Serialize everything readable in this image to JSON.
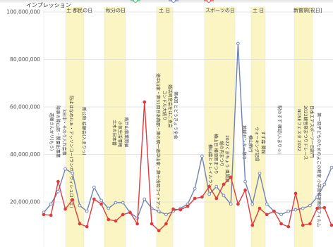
{
  "chart_data": {
    "type": "line",
    "ylabel": "インプレッション",
    "ylim": [
      0,
      100000000
    ],
    "y_ticks": [
      {
        "value": 100000000,
        "label": "100,000,000"
      },
      {
        "value": 80000000,
        "label": "80,000,000"
      },
      {
        "value": 60000000,
        "label": "60,000,000"
      },
      {
        "value": 40000000,
        "label": "40,000,000"
      },
      {
        "value": 20000000,
        "label": "20,000,000"
      }
    ],
    "grid": true,
    "series": [
      {
        "color": "#6f82b6",
        "values": [
          15600000,
          19100000,
          24400000,
          33900000,
          32100000,
          18500000,
          16100000,
          26200000,
          20600000,
          17300000,
          19700000,
          19700000,
          15600000,
          13200000,
          21200000,
          17300000,
          16100000,
          14700000,
          16100000,
          17300000,
          19100000,
          25600000,
          39300000,
          23300000,
          26500000,
          22700000,
          19100000,
          86700000,
          28600000,
          19100000,
          32100000,
          19100000,
          16100000,
          14700000,
          16100000,
          16700000,
          17300000,
          18500000,
          22100000,
          27400000,
          34500000
        ]
      },
      {
        "color": "#e23b3b",
        "values": [
          14700000,
          14400000,
          28600000,
          17000000,
          20900000,
          10800000,
          9600000,
          21200000,
          19100000,
          12600000,
          12000000,
          14700000,
          15600000,
          10800000,
          62100000,
          10800000,
          7900000,
          10800000,
          17000000,
          16700000,
          18200000,
          21500000,
          22100000,
          26500000,
          21500000,
          27400000,
          30400000,
          19100000,
          25000000,
          10200000,
          17300000,
          14700000,
          16100000,
          10800000,
          9600000,
          23600000,
          10200000,
          10800000,
          17300000,
          17600000,
          10200000
        ]
      }
    ],
    "band_labels": [
      "土 都民の日",
      "秋分の日",
      "土 日",
      "スポーツの日",
      "土 日",
      "新嘗祭[祝日]"
    ],
    "band_color": "#fbf5c4",
    "annotations": [
      "遠藤さんかリ(もう)",
      "陸奥の陸山部・関園出事業",
      "3日中・そのう入れ会事",
      "防止はなめルぁ・アッソンコー(ランガ・ヴィシュロヴェ)",
      "新公府 絵顧会(入まりっ)",
      "土木の日本番",
      "小気生活情報",
      "南戸山事業開催",
      "途中山家・第31回日本首郡・第の朝一途中山家・第十浅明ライトアップ",
      "コンドル大統り",
      "婚活同窓会をはこ支会",
      "第4回 とどうきょう全会",
      "横山森とトレイルラン",
      "横山日 横須賀まつり",
      "堀の内まつり",
      "2022くまちょう 風間展",
      "地域センター祭り",
      "横山新行",
      "ウォーキング記録",
      "すず森 関館",
      "駅のすず 確認(入まりっ)",
      "NOSEフェスタ 2022",
      "2022観音祭まつりドレース",
      "日本エアスポーツ一日部門",
      "第一回子どものためのよこの教室 小学館教室映画フィルム"
    ]
  },
  "legend": {
    "marker_colors": [
      "#3cb878",
      "#6f82b6",
      "#e23b3b"
    ]
  }
}
